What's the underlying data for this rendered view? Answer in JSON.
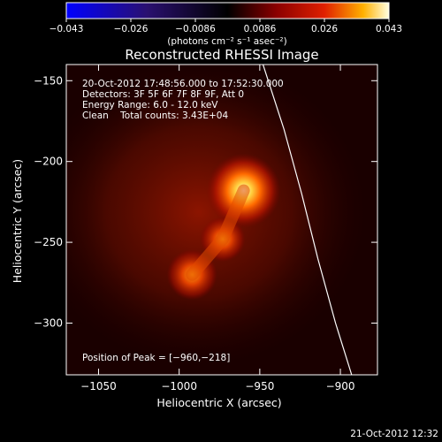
{
  "colorbar": {
    "ticks": [
      "−0.043",
      "−0.026",
      "−0.0086",
      "0.0086",
      "0.026",
      "0.043"
    ],
    "unit_label": "(photons cm⁻² s⁻¹ asec⁻²)",
    "range": [
      -0.043,
      0.043
    ]
  },
  "chart_data": {
    "type": "heatmap",
    "title": "Reconstructed RHESSI Image",
    "xlabel": "Heliocentric X (arcsec)",
    "ylabel": "Heliocentric Y (arcsec)",
    "xlim": [
      -1070,
      -877
    ],
    "ylim": [
      -332,
      -140
    ],
    "x_ticks": [
      -1050,
      -1000,
      -950,
      -900
    ],
    "y_ticks": [
      -150,
      -200,
      -250,
      -300
    ],
    "x_tick_labels": [
      "−1050",
      "−1000",
      "−950",
      "−900"
    ],
    "y_tick_labels": [
      "−150",
      "−200",
      "−250",
      "−300"
    ],
    "sources": [
      {
        "x": -960,
        "y": -218,
        "rel_intensity": 1.0
      },
      {
        "x": -973,
        "y": -248,
        "rel_intensity": 0.45
      },
      {
        "x": -992,
        "y": -270,
        "rel_intensity": 0.55
      }
    ],
    "limb_curve": [
      [
        -948,
        -140
      ],
      [
        -935,
        -180
      ],
      [
        -924,
        -220
      ],
      [
        -914,
        -260
      ],
      [
        -903,
        -300
      ],
      [
        -893,
        -332
      ]
    ],
    "peak_marker": {
      "x": -960,
      "y": -218
    }
  },
  "info": {
    "time": "20-Oct-2012 17:48:56.000 to 17:52:30.000",
    "detectors": "Detectors: 3F 5F 6F 7F 8F 9F, Att 0",
    "energy": "Energy Range: 6.0 - 12.0 keV",
    "clean": "Clean    Total counts: 3.43E+04",
    "peak": "Position of Peak = [−960,−218]"
  },
  "footer": {
    "date": "21-Oct-2012 12:32"
  },
  "colors": {
    "background": "#000000",
    "text": "#ffffff",
    "limb": "#ffffff"
  }
}
